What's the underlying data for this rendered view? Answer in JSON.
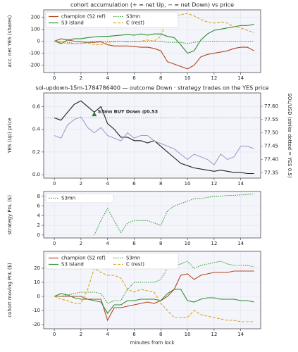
{
  "chart_data": [
    {
      "type": "line",
      "title": "cohort accumulation (+ = net Up, − = net Down) vs price",
      "ylabel": "acc. net YES (shares)",
      "x": [
        0,
        0.5,
        1,
        1.5,
        2,
        2.5,
        3,
        3.5,
        4,
        4.5,
        5,
        5.5,
        6,
        6.5,
        7,
        7.5,
        8,
        8.5,
        9,
        9.5,
        10,
        10.5,
        11,
        11.5,
        12,
        12.5,
        13,
        13.5,
        14,
        14.5,
        15
      ],
      "xlim": [
        -0.8,
        15.5
      ],
      "xticks": [
        0,
        2,
        4,
        6,
        8,
        10,
        12,
        14
      ],
      "ylim": [
        -260,
        260
      ],
      "yticks": [
        -200,
        -100,
        0,
        100,
        200
      ],
      "grid": true,
      "legend": "upper left",
      "series": [
        {
          "name": "champion (S2 ref)",
          "color": "#b5441a",
          "style": "solid",
          "values": [
            0,
            20,
            10,
            0,
            -5,
            -10,
            -10,
            -5,
            -30,
            -40,
            -40,
            -40,
            -45,
            -50,
            -50,
            -60,
            -80,
            -170,
            -190,
            -210,
            -230,
            -200,
            -130,
            -110,
            -100,
            -90,
            -80,
            -60,
            -50,
            -50,
            -80
          ]
        },
        {
          "name": "S3 island",
          "color": "#2e8b2e",
          "style": "solid",
          "values": [
            0,
            -20,
            10,
            20,
            20,
            30,
            35,
            40,
            40,
            45,
            50,
            55,
            50,
            60,
            50,
            60,
            60,
            40,
            30,
            -30,
            -100,
            -80,
            10,
            60,
            90,
            100,
            110,
            120,
            130,
            130,
            140
          ]
        },
        {
          "name": "S3mn",
          "color": "#3a9a3a",
          "style": "dotted",
          "values": [
            0,
            0,
            -10,
            -20,
            -20,
            -10,
            0,
            0,
            0,
            0,
            0,
            -5,
            0,
            0,
            0,
            0,
            0,
            -10,
            -10,
            -10,
            -20,
            -10,
            0,
            0,
            0,
            0,
            0,
            0,
            0,
            0,
            0
          ]
        },
        {
          "name": "C (rest)",
          "color": "#daa520",
          "style": "dashed",
          "values": [
            0,
            -10,
            -20,
            -20,
            -20,
            -15,
            -30,
            -30,
            -10,
            -5,
            0,
            0,
            -5,
            0,
            10,
            0,
            40,
            200,
            200,
            220,
            230,
            210,
            180,
            160,
            150,
            160,
            150,
            120,
            110,
            90,
            70
          ]
        }
      ]
    },
    {
      "type": "line",
      "title": "sol-updown-15m-1784786400 — outcome Down · strategy trades on the YES price",
      "ylabel": "YES (Up) price",
      "y2label": "SOL/USD (strike dotted = YES 0.5)",
      "x": [
        0,
        0.5,
        1,
        1.5,
        2,
        2.5,
        3,
        3.5,
        4,
        4.5,
        5,
        5.5,
        6,
        6.5,
        7,
        7.5,
        8,
        8.5,
        9,
        9.5,
        10,
        10.5,
        11,
        11.5,
        12,
        12.5,
        13,
        13.5,
        14,
        14.5,
        15
      ],
      "xlim": [
        -0.8,
        15.5
      ],
      "xticks": [
        0,
        2,
        4,
        6,
        8,
        10,
        12,
        14
      ],
      "ylim": [
        -0.03,
        0.72
      ],
      "yticks": [
        {
          "value": 0,
          "label": "0.0"
        },
        0.2,
        0.4,
        0.6
      ],
      "y2lim": [
        77.33,
        77.65
      ],
      "y2ticks": [
        77.35,
        {
          "value": 77.4,
          "label": "77.40"
        },
        77.45,
        {
          "value": 77.5,
          "label": "77.50"
        },
        77.55,
        {
          "value": 77.6,
          "label": "77.60"
        }
      ],
      "grid": true,
      "reference_line": 0.5,
      "series": [
        {
          "color": "#222222",
          "style": "solid",
          "values": [
            0.5,
            0.48,
            0.55,
            0.62,
            0.65,
            0.6,
            0.55,
            0.6,
            0.45,
            0.4,
            0.33,
            0.33,
            0.3,
            0.3,
            0.28,
            0.3,
            0.25,
            0.2,
            0.15,
            0.1,
            0.08,
            0.06,
            0.05,
            0.04,
            0.03,
            0.04,
            0.03,
            0.02,
            0.02,
            0.01,
            0.01
          ]
        },
        {
          "color": "#a89cc8",
          "style": "solid",
          "axis": "y2",
          "values": [
            77.49,
            77.48,
            77.53,
            77.55,
            77.56,
            77.52,
            77.5,
            77.52,
            77.49,
            77.48,
            77.47,
            77.5,
            77.48,
            77.49,
            77.49,
            77.47,
            77.46,
            77.45,
            77.44,
            77.42,
            77.4,
            77.42,
            77.41,
            77.4,
            77.38,
            77.42,
            77.4,
            77.41,
            77.45,
            77.45,
            77.44
          ]
        }
      ],
      "markers": [
        {
          "x": 3,
          "y": 0.53,
          "label": "S3mn BUY Down @0.53",
          "color": "#2e7d32"
        }
      ]
    },
    {
      "type": "line",
      "ylabel": "strategy PnL ($)",
      "x": [
        0,
        0.5,
        1,
        1.5,
        2,
        2.5,
        3,
        3.5,
        4,
        4.5,
        5,
        5.5,
        6,
        6.5,
        7,
        7.5,
        8,
        8.5,
        9,
        9.5,
        10,
        10.5,
        11,
        11.5,
        12,
        12.5,
        13,
        13.5,
        14,
        14.5,
        15
      ],
      "xlim": [
        -0.8,
        15.5
      ],
      "xticks": [
        0,
        2,
        4,
        6,
        8,
        10,
        12,
        14
      ],
      "ylim": [
        -0.6,
        9
      ],
      "yticks": [
        0,
        2,
        4,
        6,
        8
      ],
      "grid": true,
      "legend": "upper left",
      "series": [
        {
          "name": "S3mn",
          "color": "#3a9a3a",
          "style": "dotted",
          "values": [
            null,
            null,
            null,
            null,
            null,
            null,
            0,
            3,
            5.5,
            3,
            0.5,
            2.5,
            3,
            3,
            3,
            2.5,
            2,
            5,
            6,
            6.5,
            7,
            7.5,
            7.5,
            7.8,
            8,
            8,
            8.2,
            8.2,
            8.3,
            8.4,
            8.5
          ]
        }
      ]
    },
    {
      "type": "line",
      "ylabel": "cohort moving PnL ($)",
      "xlabel": "minutes from lock",
      "x": [
        0,
        0.5,
        1,
        1.5,
        2,
        2.5,
        3,
        3.5,
        4,
        4.5,
        5,
        5.5,
        6,
        6.5,
        7,
        7.5,
        8,
        8.5,
        9,
        9.5,
        10,
        10.5,
        11,
        11.5,
        12,
        12.5,
        13,
        13.5,
        14,
        14.5,
        15
      ],
      "xlim": [
        -0.8,
        15.5
      ],
      "xticks": [
        0,
        2,
        4,
        6,
        8,
        10,
        12,
        14
      ],
      "ylim": [
        -23,
        32
      ],
      "yticks": [
        -20,
        -10,
        0,
        10,
        20
      ],
      "grid": true,
      "legend": "upper left",
      "series": [
        {
          "name": "champion (S2 ref)",
          "color": "#b5441a",
          "style": "solid",
          "values": [
            0,
            0,
            0,
            0,
            0,
            -2,
            -2,
            -2,
            -17,
            -8,
            -8,
            -7,
            -6,
            -5,
            -4,
            -5,
            -3,
            0,
            5,
            15,
            16,
            12,
            15,
            16,
            17,
            17,
            17,
            18,
            18,
            18,
            18
          ]
        },
        {
          "name": "S3 island",
          "color": "#2e8b2e",
          "style": "solid",
          "values": [
            0,
            2,
            1,
            -1,
            -2,
            -2,
            -3,
            -4,
            -12,
            -6,
            -6,
            -3,
            -3,
            -2,
            -2,
            -2,
            -3,
            2,
            5,
            5,
            -3,
            -4,
            -2,
            -1,
            -1,
            -2,
            -2,
            -2,
            -3,
            -3,
            -4
          ]
        },
        {
          "name": "S3mn",
          "color": "#3a9a3a",
          "style": "dotted",
          "values": [
            0,
            0,
            1,
            2,
            3,
            3,
            3,
            2,
            -5,
            -3,
            -3,
            5,
            10,
            10,
            10,
            10,
            12,
            20,
            22,
            23,
            25,
            20,
            22,
            23,
            24,
            25,
            23,
            22,
            22,
            22,
            21
          ]
        },
        {
          "name": "C (rest)",
          "color": "#daa520",
          "style": "dashed",
          "values": [
            0,
            -2,
            -3,
            -5,
            -5,
            5,
            20,
            17,
            15,
            15,
            13,
            5,
            3,
            5,
            4,
            3,
            -5,
            -10,
            -15,
            -15,
            -15,
            -10,
            -13,
            -14,
            -15,
            -16,
            -17,
            -17,
            -18,
            -18,
            -18
          ]
        }
      ]
    }
  ]
}
